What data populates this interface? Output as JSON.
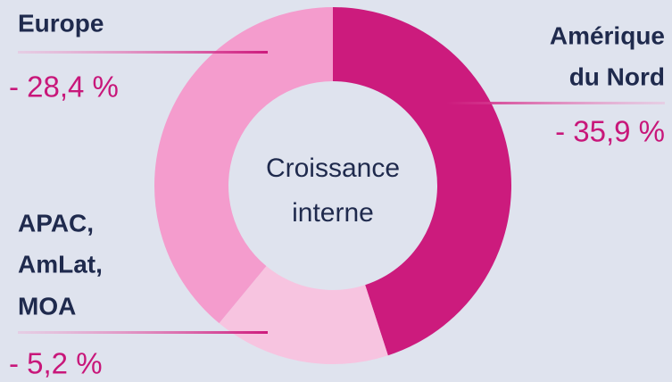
{
  "chart_data": {
    "type": "donut",
    "title": [
      "Croissance",
      "interne"
    ],
    "categories": [
      [
        "Amérique",
        "du Nord"
      ],
      [
        "APAC,",
        "AmLat,",
        "MOA"
      ],
      [
        "Europe"
      ]
    ],
    "values": [
      45,
      16,
      39
    ],
    "colors": [
      "#cc1b7d",
      "#f7c4e0",
      "#f49ccd"
    ],
    "annotations": [
      "- 35,9 %",
      "- 5,2 %",
      "- 28,4 %"
    ]
  }
}
